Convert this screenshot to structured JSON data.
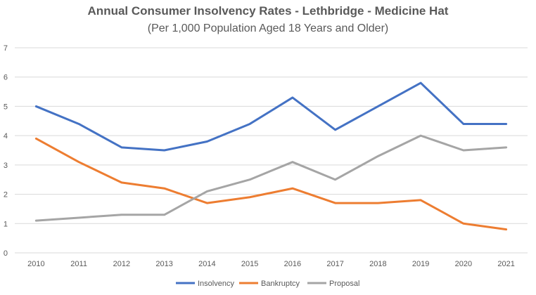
{
  "chart_data": {
    "type": "line",
    "title": "Annual Consumer Insolvency Rates - Lethbridge - Medicine Hat",
    "subtitle": "(Per 1,000 Population Aged 18 Years and Older)",
    "categories": [
      "2010",
      "2011",
      "2012",
      "2013",
      "2014",
      "2015",
      "2016",
      "2017",
      "2018",
      "2019",
      "2020",
      "2021"
    ],
    "yticks": [
      0,
      1,
      2,
      3,
      4,
      5,
      6,
      7
    ],
    "ylim": [
      0,
      7
    ],
    "grid": true,
    "legend_position": "bottom",
    "series": [
      {
        "name": "Insolvency",
        "color": "#4472C4",
        "values": [
          5.0,
          4.4,
          3.6,
          3.5,
          3.8,
          4.4,
          5.3,
          4.2,
          5.0,
          5.8,
          4.4,
          4.4
        ]
      },
      {
        "name": "Bankruptcy",
        "color": "#ED7D31",
        "values": [
          3.9,
          3.1,
          2.4,
          2.2,
          1.7,
          1.9,
          2.2,
          1.7,
          1.7,
          1.8,
          1.0,
          0.8
        ]
      },
      {
        "name": "Proposal",
        "color": "#A5A5A5",
        "values": [
          1.1,
          1.2,
          1.3,
          1.3,
          2.1,
          2.5,
          3.1,
          2.5,
          3.3,
          4.0,
          3.5,
          3.6
        ]
      }
    ]
  }
}
